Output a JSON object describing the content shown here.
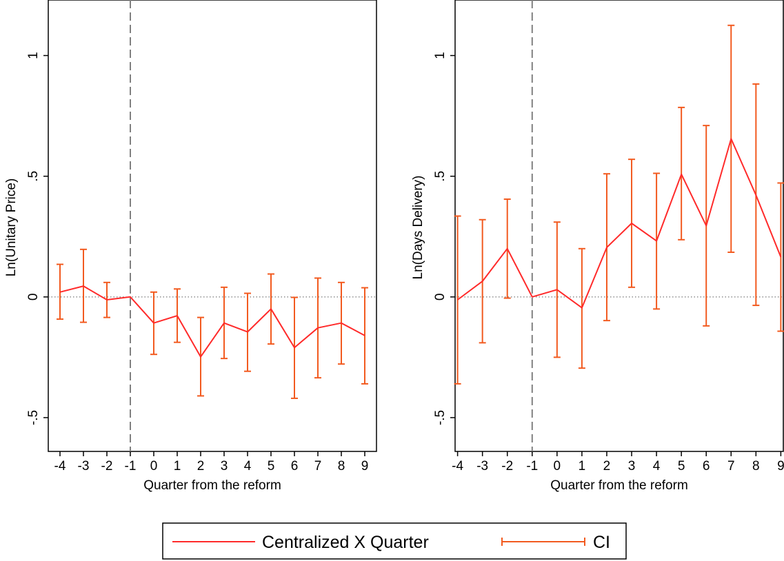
{
  "chart_data": [
    {
      "type": "line",
      "xlabel": "Quarter from the reform",
      "ylabel": "Ln(Unitary Price)",
      "x": [
        -4,
        -3,
        -2,
        -1,
        0,
        1,
        2,
        3,
        4,
        5,
        6,
        7,
        8,
        9
      ],
      "xlim": [
        -4.5,
        9.5
      ],
      "ylim": [
        -0.64,
        1.23
      ],
      "yticks": [
        -0.5,
        0,
        0.5,
        1
      ],
      "ytick_labels": [
        "-.5",
        "0",
        ".5",
        "1"
      ],
      "reference_x": -1,
      "reference_y": 0,
      "series": [
        {
          "name": "Centralized X Quarter",
          "values": [
            0.02,
            0.045,
            -0.012,
            0.0,
            -0.108,
            -0.078,
            -0.248,
            -0.108,
            -0.145,
            -0.05,
            -0.21,
            -0.128,
            -0.108,
            -0.16
          ]
        }
      ],
      "ci_lower": [
        -0.092,
        -0.105,
        -0.085,
        0.0,
        -0.238,
        -0.188,
        -0.41,
        -0.255,
        -0.308,
        -0.195,
        -0.42,
        -0.335,
        -0.278,
        -0.36
      ],
      "ci_upper": [
        0.135,
        0.197,
        0.06,
        0.0,
        0.02,
        0.033,
        -0.085,
        0.04,
        0.015,
        0.095,
        -0.002,
        0.078,
        0.06,
        0.038
      ]
    },
    {
      "type": "line",
      "xlabel": "Quarter from the reform",
      "ylabel": "Ln(Days Delivery)",
      "x": [
        -4,
        -3,
        -2,
        -1,
        0,
        1,
        2,
        3,
        4,
        5,
        6,
        7,
        8,
        9
      ],
      "xlim": [
        -4.1,
        9.1
      ],
      "ylim": [
        -0.64,
        1.23
      ],
      "yticks": [
        -0.5,
        0,
        0.5,
        1
      ],
      "ytick_labels": [
        "-.5",
        "0",
        ".5",
        "1"
      ],
      "reference_x": -1,
      "reference_y": 0,
      "series": [
        {
          "name": "Centralized X Quarter",
          "values": [
            -0.012,
            0.065,
            0.2,
            0.0,
            0.03,
            -0.045,
            0.205,
            0.305,
            0.232,
            0.508,
            0.295,
            0.655,
            0.422,
            0.165
          ]
        }
      ],
      "ci_lower": [
        -0.36,
        -0.19,
        -0.005,
        0.0,
        -0.25,
        -0.295,
        -0.098,
        0.04,
        -0.05,
        0.237,
        -0.12,
        0.185,
        -0.035,
        -0.142
      ],
      "ci_upper": [
        0.335,
        0.32,
        0.405,
        0.0,
        0.31,
        0.2,
        0.51,
        0.57,
        0.512,
        0.785,
        0.71,
        1.125,
        0.882,
        0.472
      ]
    }
  ],
  "legend": {
    "placement": "bottom-center",
    "items": [
      {
        "label": "Centralized X Quarter",
        "kind": "line",
        "color": "#ff2a2a"
      },
      {
        "label": "CI",
        "kind": "errorbar",
        "color": "#f25a1f"
      }
    ]
  },
  "colors": {
    "line": "#ff2a2a",
    "ci": "#f25a1f",
    "reference_line": "#808080",
    "zero_line": "#555555"
  }
}
